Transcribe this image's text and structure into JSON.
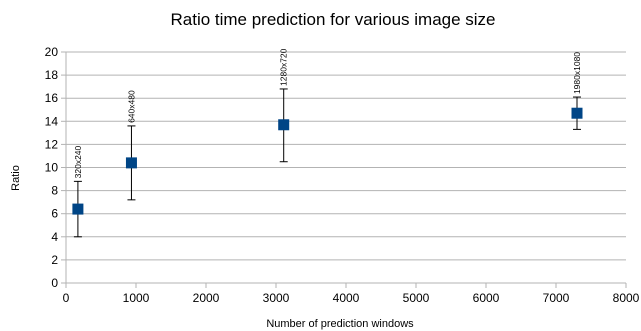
{
  "chart_data": {
    "type": "scatter",
    "title": "Ratio time prediction for various image size",
    "xlabel": "Number of prediction windows",
    "ylabel": "Ratio",
    "xlim": [
      0,
      8000
    ],
    "ylim": [
      0,
      20
    ],
    "x_ticks": [
      0,
      1000,
      2000,
      3000,
      4000,
      5000,
      6000,
      7000,
      8000
    ],
    "y_ticks": [
      0,
      2,
      4,
      6,
      8,
      10,
      12,
      14,
      16,
      18,
      20
    ],
    "grid": "horizontal",
    "legend": "none",
    "series": [
      {
        "marker_color": "#004586",
        "points": [
          {
            "label": "320x240",
            "x": 170,
            "y": 6.4,
            "y_low": 4.0,
            "y_high": 8.8
          },
          {
            "label": "640x480",
            "x": 935,
            "y": 10.4,
            "y_low": 7.2,
            "y_high": 13.6
          },
          {
            "label": "1280x720",
            "x": 3110,
            "y": 13.7,
            "y_low": 10.5,
            "y_high": 16.8
          },
          {
            "label": "1980x1080",
            "x": 7300,
            "y": 14.7,
            "y_low": 13.3,
            "y_high": 16.1
          }
        ]
      }
    ],
    "colors": {
      "marker": "#004586",
      "grid": "#b3b3b3",
      "axis": "#b3b3b3",
      "error_bar": "#000000"
    }
  }
}
